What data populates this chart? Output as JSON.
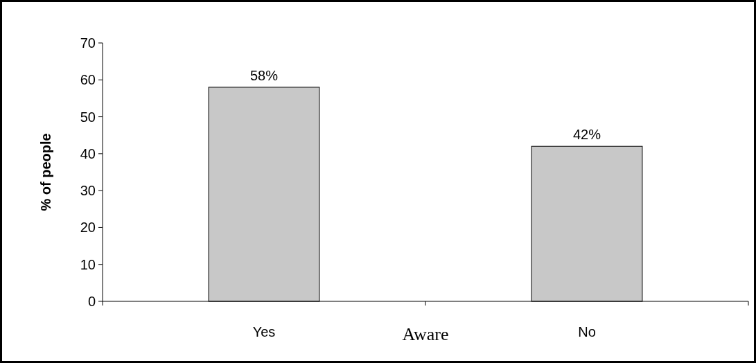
{
  "chart_data": {
    "type": "bar",
    "xlabel": "Aware",
    "ylabel": "% of people",
    "categories": [
      "Yes",
      "No"
    ],
    "values": [
      58,
      42
    ],
    "color": "#c8c8c8",
    "value_labels": [
      "58%",
      "42%"
    ],
    "ylim": [
      0,
      70
    ],
    "yticks": [
      0,
      10,
      20,
      30,
      40,
      50,
      60,
      70
    ],
    "grid": false
  }
}
